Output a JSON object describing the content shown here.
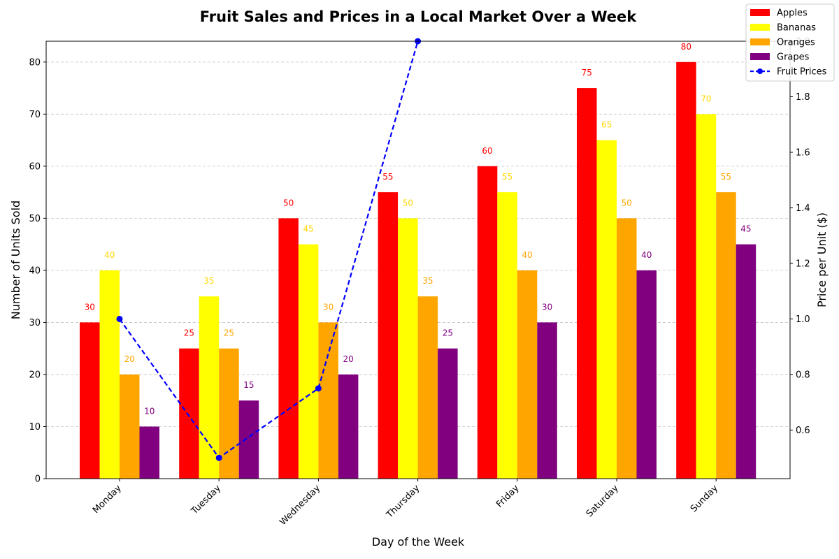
{
  "chart_data": {
    "type": "bar",
    "title": "Fruit Sales and Prices in a Local Market Over a Week",
    "xlabel": "Day of the Week",
    "ylabel": "Number of Units Sold",
    "y2label": "Price per Unit ($)",
    "y2label_color": "#0000ff",
    "categories": [
      "Monday",
      "Tuesday",
      "Wednesday",
      "Thursday",
      "Friday",
      "Saturday",
      "Sunday"
    ],
    "ylim": [
      0,
      84
    ],
    "yticks": [
      0,
      10,
      20,
      30,
      40,
      50,
      60,
      70,
      80
    ],
    "y2lim": [
      0.425,
      2.0
    ],
    "y2ticks": [
      "0.6",
      "0.8",
      "1.0",
      "1.2",
      "1.4",
      "1.6",
      "1.8",
      "2.0"
    ],
    "grid": true,
    "legend_position": "top-right",
    "series": [
      {
        "name": "Apples",
        "color": "#ff0000",
        "values": [
          30,
          25,
          50,
          55,
          60,
          75,
          80
        ]
      },
      {
        "name": "Bananas",
        "color": "#ffff00",
        "label_color": "#ffd700",
        "values": [
          40,
          35,
          45,
          50,
          55,
          65,
          70
        ]
      },
      {
        "name": "Oranges",
        "color": "#ffa500",
        "values": [
          20,
          25,
          30,
          35,
          40,
          50,
          55
        ]
      },
      {
        "name": "Grapes",
        "color": "#800080",
        "values": [
          10,
          15,
          20,
          25,
          30,
          40,
          45
        ]
      }
    ],
    "line_series": {
      "name": "Fruit Prices",
      "color": "#0000ff",
      "style": "dashed",
      "marker": "circle",
      "axis": "secondary",
      "x": [
        "Monday",
        "Tuesday",
        "Wednesday",
        "Thursday"
      ],
      "values": [
        1.0,
        0.5,
        0.75,
        2.0
      ]
    }
  }
}
